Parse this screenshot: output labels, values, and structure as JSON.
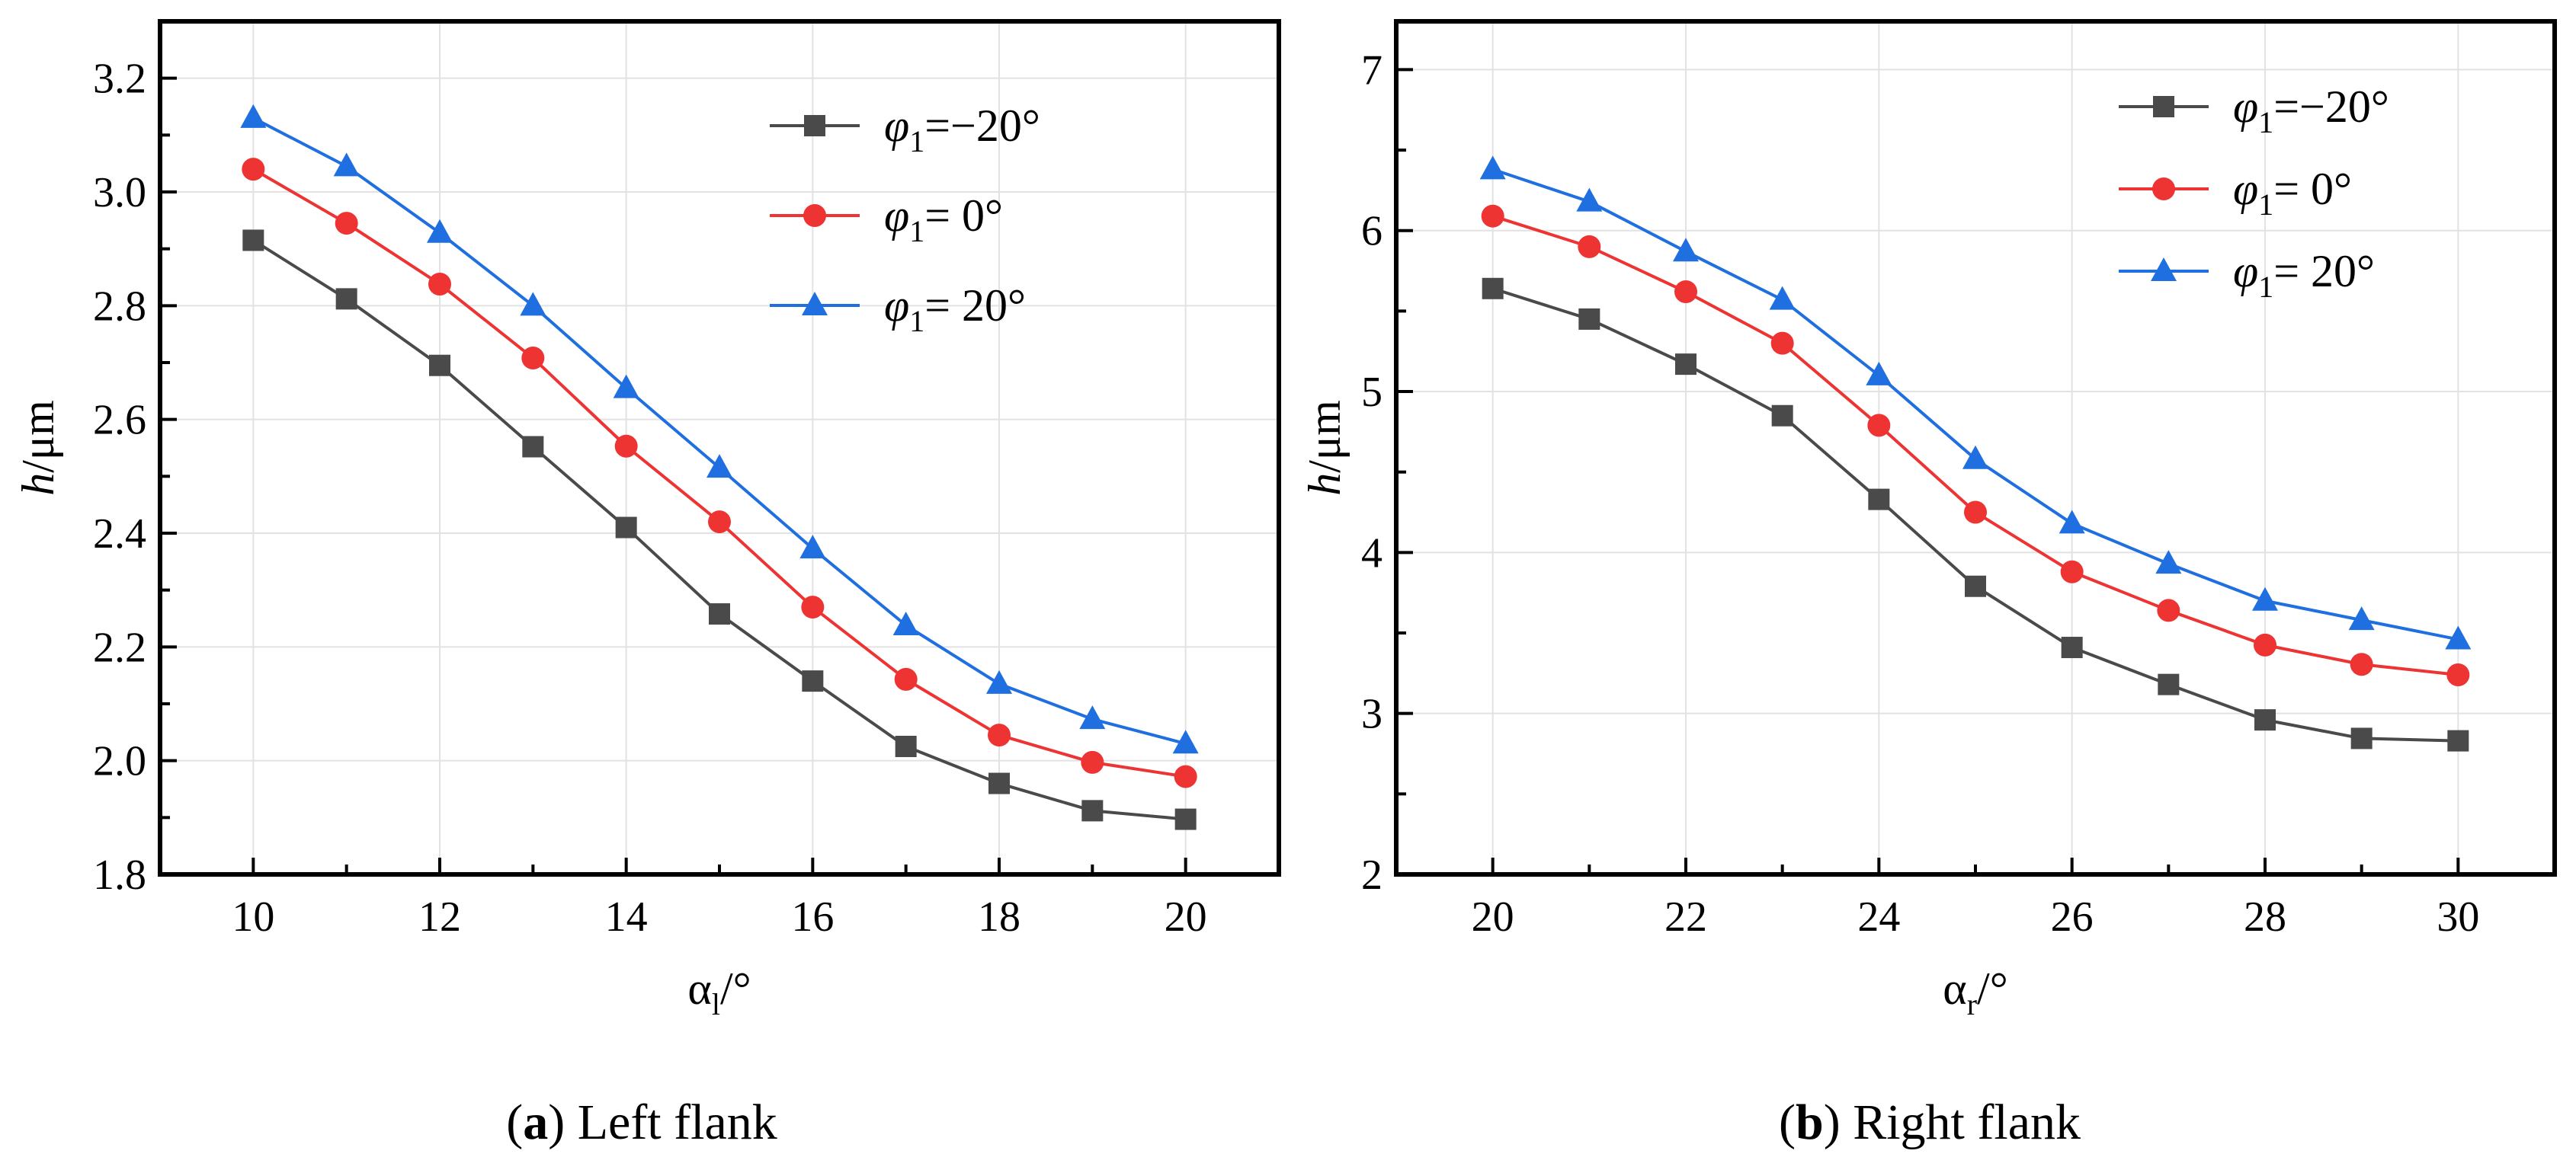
{
  "chart_data": [
    {
      "panel": "a",
      "type": "line",
      "caption_label": "a",
      "caption_text": " Left flank",
      "x": [
        10,
        11,
        12,
        13,
        14,
        15,
        16,
        17,
        18,
        19,
        20
      ],
      "xlim": [
        9,
        21
      ],
      "ylim": [
        1.8,
        3.3
      ],
      "xticks": [
        10,
        12,
        14,
        16,
        18,
        20
      ],
      "yticks": [
        1.8,
        2.0,
        2.2,
        2.4,
        2.6,
        2.8,
        3.0,
        3.2
      ],
      "ytick_labels": [
        "1.8",
        "2.0",
        "2.2",
        "2.4",
        "2.6",
        "2.8",
        "3.0",
        "3.2"
      ],
      "xlabel_main": "α",
      "xlabel_sub": "l",
      "xlabel_unit": "/°",
      "ylabel_var": "h",
      "ylabel_unit": "/μm",
      "grid": true,
      "legend_position": "top-right",
      "series": [
        {
          "name": "φ1=−20°",
          "legend_sym": "φ",
          "legend_sub": "1",
          "legend_val": "=−20°",
          "color": "#4a4a4a",
          "marker": "square",
          "values": [
            2.915,
            2.812,
            2.695,
            2.552,
            2.41,
            2.258,
            2.14,
            2.025,
            1.96,
            1.912,
            1.897
          ]
        },
        {
          "name": "φ1= 0°",
          "legend_sym": "φ",
          "legend_sub": "1",
          "legend_val": "=  0°",
          "color": "#ee3333",
          "marker": "circle",
          "values": [
            3.04,
            2.945,
            2.838,
            2.708,
            2.553,
            2.42,
            2.27,
            2.143,
            2.045,
            1.997,
            1.972
          ]
        },
        {
          "name": "φ1= 20°",
          "legend_sym": "φ",
          "legend_sub": "1",
          "legend_val": "=  20°",
          "color": "#1f6fe0",
          "marker": "triangle",
          "values": [
            3.13,
            3.045,
            2.928,
            2.8,
            2.655,
            2.515,
            2.373,
            2.238,
            2.135,
            2.073,
            2.03
          ]
        }
      ]
    },
    {
      "panel": "b",
      "type": "line",
      "caption_label": "b",
      "caption_text": " Right flank",
      "x": [
        20,
        21,
        22,
        23,
        24,
        25,
        26,
        27,
        28,
        29,
        30
      ],
      "xlim": [
        19,
        31
      ],
      "ylim": [
        2,
        7.3
      ],
      "xticks": [
        20,
        22,
        24,
        26,
        28,
        30
      ],
      "yticks": [
        2,
        3,
        4,
        5,
        6,
        7
      ],
      "ytick_labels": [
        "2",
        "3",
        "4",
        "5",
        "6",
        "7"
      ],
      "xlabel_main": "α",
      "xlabel_sub": "r",
      "xlabel_unit": "/°",
      "ylabel_var": "h",
      "ylabel_unit": "/μm",
      "grid": true,
      "legend_position": "top-right",
      "series": [
        {
          "name": "φ1=−20°",
          "legend_sym": "φ",
          "legend_sub": "1",
          "legend_val": "=−20°",
          "color": "#4a4a4a",
          "marker": "square",
          "values": [
            5.64,
            5.45,
            5.17,
            4.85,
            4.33,
            3.79,
            3.41,
            3.18,
            2.96,
            2.845,
            2.83
          ]
        },
        {
          "name": "φ1= 0°",
          "legend_sym": "φ",
          "legend_sub": "1",
          "legend_val": "=  0°",
          "color": "#ee3333",
          "marker": "circle",
          "values": [
            6.09,
            5.9,
            5.62,
            5.3,
            4.79,
            4.25,
            3.88,
            3.64,
            3.425,
            3.305,
            3.24
          ]
        },
        {
          "name": "φ1= 20°",
          "legend_sym": "φ",
          "legend_sub": "1",
          "legend_val": "=  20°",
          "color": "#1f6fe0",
          "marker": "triangle",
          "values": [
            6.38,
            6.18,
            5.87,
            5.57,
            5.1,
            4.58,
            4.18,
            3.93,
            3.7,
            3.58,
            3.46
          ]
        }
      ]
    }
  ]
}
